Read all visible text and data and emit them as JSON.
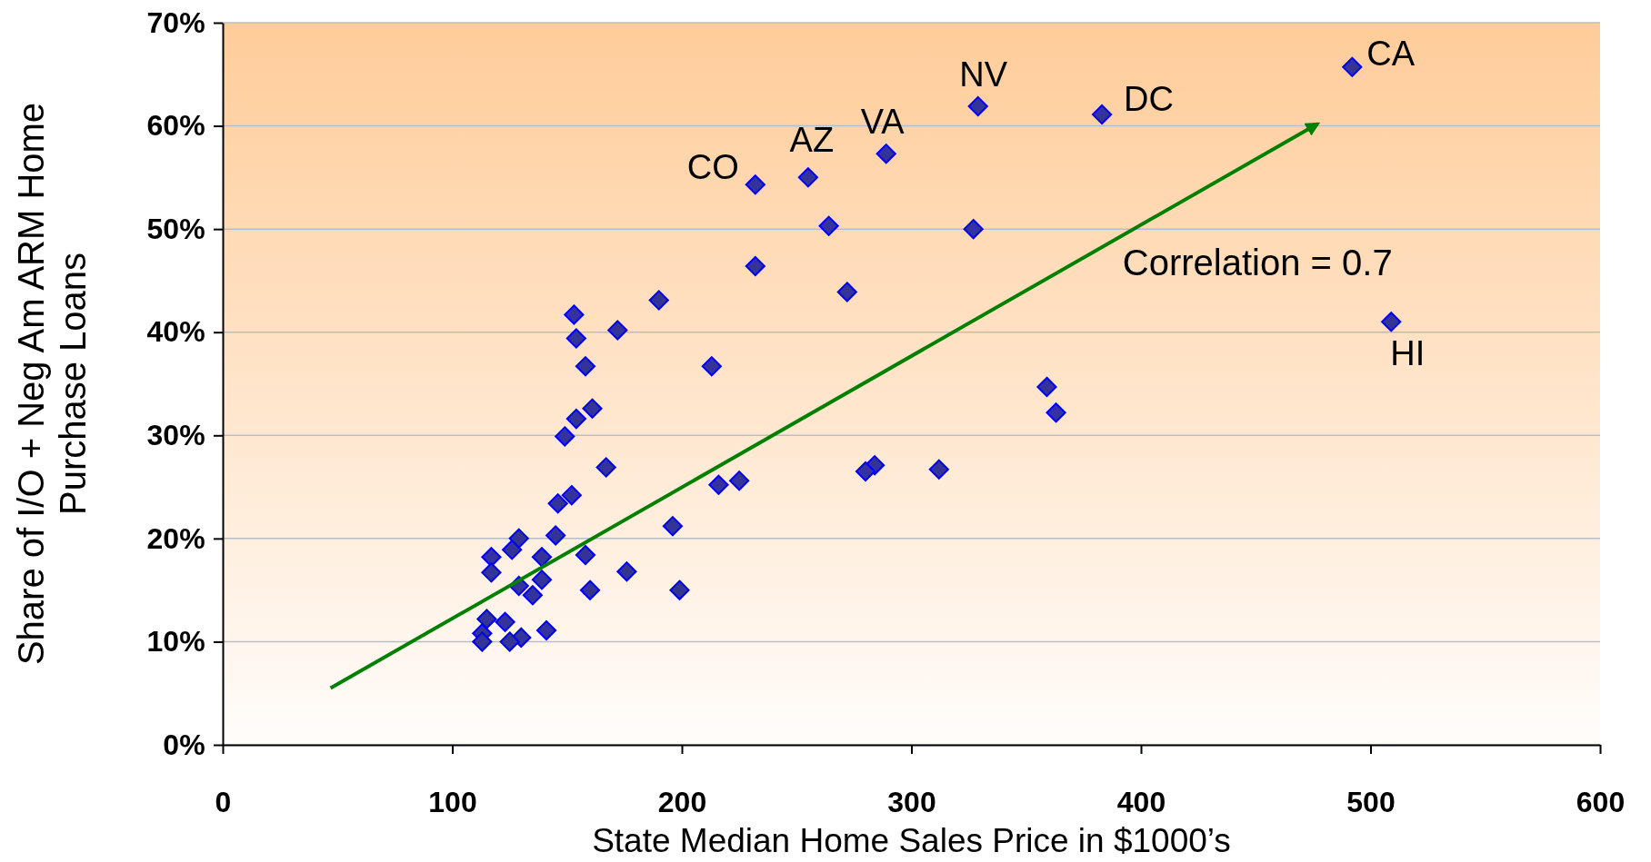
{
  "chart_data": {
    "type": "scatter",
    "xlabel": "State Median Home Sales Price in $1000’s",
    "ylabel": "Share of I/O + Neg Am ARM  Home Purchase Loans",
    "xlim": [
      0,
      600
    ],
    "xticks": [
      0,
      100,
      200,
      300,
      400,
      500,
      600
    ],
    "ylim": [
      0,
      70
    ],
    "yticks": [
      {
        "value": 0,
        "label": "0%"
      },
      {
        "value": 10,
        "label": "10%"
      },
      {
        "value": 20,
        "label": "20%"
      },
      {
        "value": 30,
        "label": "30%"
      },
      {
        "value": 40,
        "label": "40%"
      },
      {
        "value": 50,
        "label": "50%"
      },
      {
        "value": 60,
        "label": "60%"
      },
      {
        "value": 70,
        "label": "70%"
      }
    ],
    "grid": "y",
    "series": [
      {
        "marker": "diamond",
        "color": "#333399",
        "x": [
          492,
          509,
          383,
          329,
          289,
          255,
          232,
          264,
          327,
          232,
          272,
          190,
          153,
          172,
          154,
          213,
          158,
          359,
          363,
          161,
          154,
          149,
          167,
          312,
          284,
          280,
          216,
          225,
          152,
          146,
          196,
          145,
          129,
          117,
          126,
          139,
          158,
          117,
          176,
          139,
          129,
          135,
          160,
          199,
          115,
          123,
          113,
          113,
          141,
          130,
          125
        ],
        "values": [
          65.7,
          41.0,
          61.1,
          61.9,
          57.3,
          55.0,
          54.3,
          50.3,
          50.0,
          46.4,
          43.9,
          43.1,
          41.7,
          40.2,
          39.4,
          36.7,
          36.7,
          34.7,
          32.2,
          32.6,
          31.6,
          29.9,
          26.9,
          26.7,
          27.1,
          26.5,
          25.2,
          25.6,
          24.2,
          23.4,
          21.2,
          20.3,
          20.0,
          18.2,
          18.9,
          18.2,
          18.4,
          16.7,
          16.8,
          16.0,
          15.4,
          14.5,
          15.0,
          15.0,
          12.2,
          11.9,
          10.8,
          10.0,
          11.1,
          10.4,
          10.0
        ]
      },
      {
        "type": "line",
        "color": "#008000",
        "x": [
          47,
          477
        ],
        "values": [
          5.5,
          60.2
        ]
      }
    ],
    "annotations": [
      {
        "text": "CA",
        "x": 492,
        "y": 65.7
      },
      {
        "text": "HI",
        "x": 509,
        "y": 41.0
      },
      {
        "text": "DC",
        "x": 383,
        "y": 61.1
      },
      {
        "text": "NV",
        "x": 329,
        "y": 61.9
      },
      {
        "text": "VA",
        "x": 289,
        "y": 57.3
      },
      {
        "text": "AZ",
        "x": 255,
        "y": 55.0
      },
      {
        "text": "CO",
        "x": 232,
        "y": 54.3
      },
      "Correlation = 0.7"
    ]
  }
}
